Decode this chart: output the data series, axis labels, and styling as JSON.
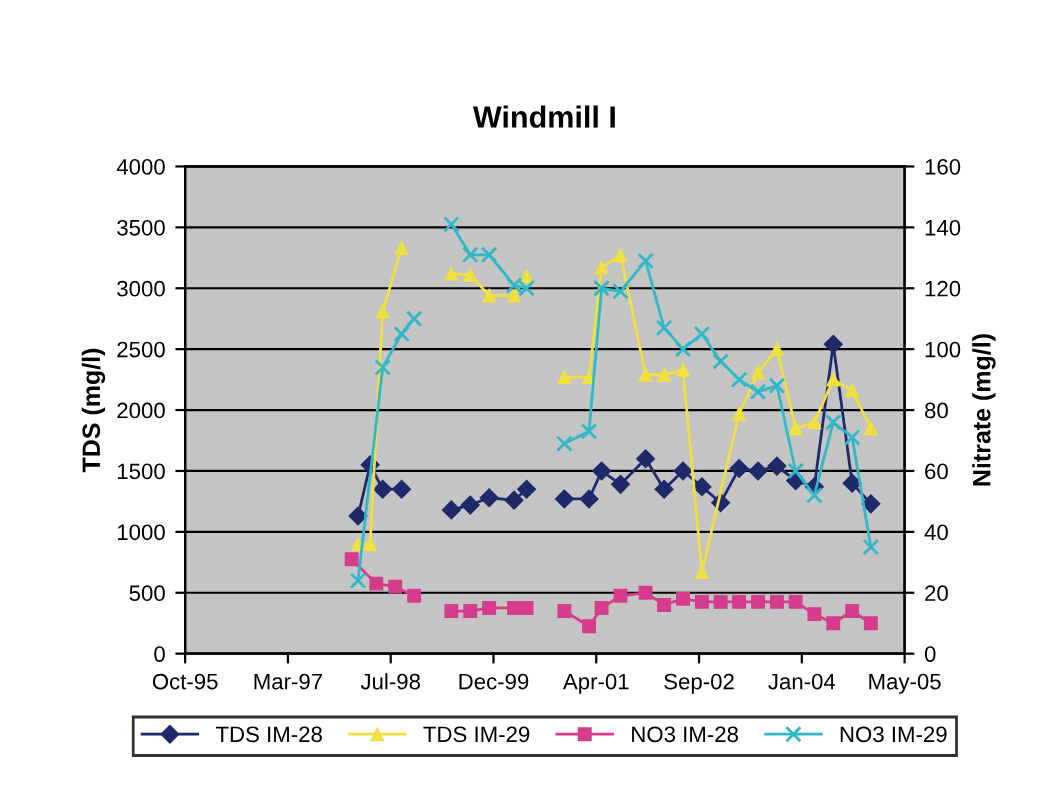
{
  "chart_data": {
    "type": "line",
    "title": "Windmill I",
    "ylabel": "TDS (mg/l)",
    "y2label": "Nitrate (mg/l)",
    "xlim": [
      "1995-10-28",
      "2005-05-28"
    ],
    "xticks": [
      {
        "value": "1995-10-28",
        "label": "Oct-95"
      },
      {
        "value": "1997-03-11",
        "label": "Mar-97"
      },
      {
        "value": "1998-07-24",
        "label": "Jul-98"
      },
      {
        "value": "1999-12-06",
        "label": "Dec-99"
      },
      {
        "value": "2001-04-19",
        "label": "Apr-01"
      },
      {
        "value": "2002-09-01",
        "label": "Sep-02"
      },
      {
        "value": "2004-01-14",
        "label": "Jan-04"
      },
      {
        "value": "2005-05-28",
        "label": "May-05"
      }
    ],
    "ylim": [
      0,
      4000
    ],
    "yticks": [
      0,
      500,
      1000,
      1500,
      2000,
      2500,
      3000,
      3500,
      4000
    ],
    "y2lim": [
      0,
      160
    ],
    "y2ticks": [
      0,
      20,
      40,
      60,
      80,
      100,
      120,
      140,
      160
    ],
    "grid": "y",
    "legend": "bottom",
    "series": [
      {
        "name": "TDS IM-28",
        "color": "#1f2a6b",
        "marker": "diamond",
        "x": [
          "1998-02",
          "1998-04",
          "1998-06",
          "1998-09",
          "1999-01",
          "1999-05",
          "1999-08",
          "1999-11",
          "2000-03",
          "2000-05",
          "2000-08",
          "2000-11",
          "2001-03",
          "2001-05",
          "2001-08",
          "2001-12",
          "2002-03",
          "2002-06",
          "2002-09",
          "2002-12",
          "2003-03",
          "2003-06",
          "2003-09",
          "2003-12",
          "2004-03",
          "2004-06",
          "2004-09",
          "2004-12"
        ],
        "values": [
          1130,
          1550,
          1350,
          1350,
          null,
          1180,
          1220,
          1280,
          1260,
          1350,
          null,
          1270,
          1270,
          1500,
          1390,
          1600,
          1350,
          1500,
          1370,
          1240,
          1520,
          1500,
          1540,
          1420,
          1370,
          2540,
          1400,
          1230
        ]
      },
      {
        "name": "TDS IM-29",
        "color": "#f0e040",
        "marker": "triangle",
        "x": [
          "1998-02",
          "1998-04",
          "1998-06",
          "1998-09",
          "1999-01",
          "1999-05",
          "1999-08",
          "1999-11",
          "2000-03",
          "2000-05",
          "2000-08",
          "2000-11",
          "2001-03",
          "2001-05",
          "2001-08",
          "2001-12",
          "2002-03",
          "2002-06",
          "2002-09",
          "2003-03",
          "2003-06",
          "2003-09",
          "2003-12",
          "2004-03",
          "2004-06",
          "2004-09",
          "2004-12"
        ],
        "values": [
          900,
          900,
          2810,
          3330,
          null,
          3120,
          3110,
          2940,
          2940,
          3100,
          null,
          2270,
          2270,
          3170,
          3270,
          2290,
          2290,
          2330,
          670,
          1970,
          2310,
          2500,
          1850,
          1900,
          2250,
          2160,
          1850
        ]
      },
      {
        "name": "NO3 IM-28",
        "color": "#d63c8c",
        "marker": "square",
        "axis": "y2",
        "x": [
          "1998-01",
          "1998-05",
          "1998-08",
          "1998-11",
          "1999-01",
          "1999-05",
          "1999-08",
          "1999-11",
          "2000-03",
          "2000-05",
          "2000-08",
          "2000-11",
          "2001-03",
          "2001-05",
          "2001-08",
          "2001-12",
          "2002-03",
          "2002-06",
          "2002-09",
          "2002-12",
          "2003-03",
          "2003-06",
          "2003-09",
          "2003-12",
          "2004-03",
          "2004-06",
          "2004-09",
          "2004-12"
        ],
        "values": [
          31,
          23,
          22,
          19,
          null,
          14,
          14,
          15,
          15,
          15,
          null,
          14,
          9,
          15,
          19,
          20,
          16,
          18,
          17,
          17,
          17,
          17,
          17,
          17,
          13,
          10,
          14,
          10
        ]
      },
      {
        "name": "NO3 IM-29",
        "color": "#30b8c8",
        "marker": "cross",
        "axis": "y2",
        "x": [
          "1998-02",
          "1998-06",
          "1998-09",
          "1998-11",
          "1999-01",
          "1999-05",
          "1999-08",
          "1999-11",
          "2000-03",
          "2000-05",
          "2000-08",
          "2000-11",
          "2001-03",
          "2001-05",
          "2001-08",
          "2001-12",
          "2002-03",
          "2002-06",
          "2002-09",
          "2002-12",
          "2003-03",
          "2003-06",
          "2003-09",
          "2003-12",
          "2004-03",
          "2004-06",
          "2004-09",
          "2004-12"
        ],
        "values": [
          24,
          94,
          105,
          110,
          null,
          141,
          131,
          131,
          121,
          120,
          null,
          69,
          73,
          120,
          119,
          129,
          107,
          100,
          105,
          96,
          90,
          86,
          88,
          60,
          52,
          76,
          71,
          35
        ]
      }
    ]
  }
}
